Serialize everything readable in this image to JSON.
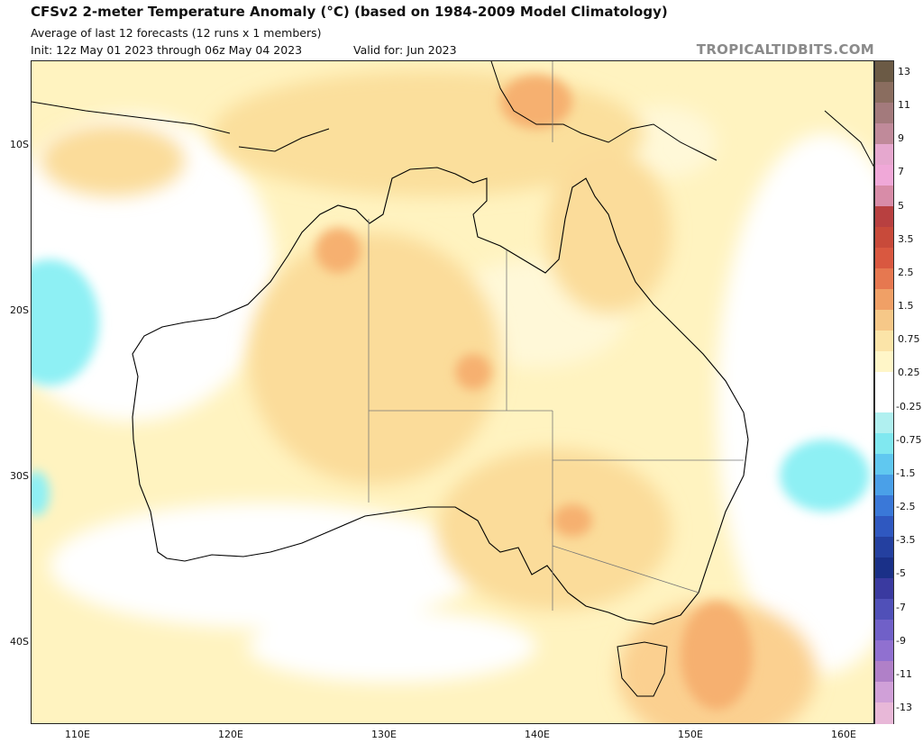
{
  "header": {
    "title": "CFSv2 2-meter Temperature Anomaly (°C) (based on 1984-2009 Model Climatology)",
    "subtitle": "Average of last 12 forecasts (12 runs x 1 members)",
    "init": "Init: 12z May 01 2023 through 06z May 04 2023",
    "valid": "Valid for: Jun 2023",
    "brand": "TROPICALTIDBITS.COM"
  },
  "axes": {
    "lat_labels": [
      "10S",
      "20S",
      "30S",
      "40S"
    ],
    "lon_labels": [
      "110E",
      "120E",
      "130E",
      "140E",
      "150E",
      "160E"
    ]
  },
  "colorbar": {
    "labels": [
      "13",
      "11",
      "9",
      "7",
      "5",
      "3.5",
      "2.5",
      "1.5",
      "0.75",
      "0.25",
      "-0.25",
      "-0.75",
      "-1.5",
      "-2.5",
      "-3.5",
      "-5",
      "-7",
      "-9",
      "-11",
      "-13"
    ],
    "colors": [
      "#6b5a45",
      "#8a6d5f",
      "#a37a7c",
      "#c08a9a",
      "#e6a8cf",
      "#f0a8d8",
      "#d88ca8",
      "#b84040",
      "#c84a3a",
      "#d95840",
      "#e67850",
      "#f0a066",
      "#f6c888",
      "#fbe4a8",
      "#fff6c8",
      "#ffffff",
      "#ffffff",
      "#b0f0f0",
      "#80e8f0",
      "#60c8f0",
      "#4aa0e8",
      "#3a78d8",
      "#2f58c0",
      "#2440a0",
      "#1a3088",
      "#3a3aa0",
      "#5050b8",
      "#7060c8",
      "#9070d0",
      "#b080c8",
      "#d0a0d8",
      "#e8b8d8"
    ]
  }
}
